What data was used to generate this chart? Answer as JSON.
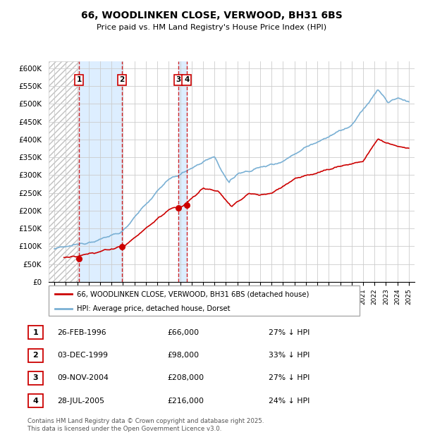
{
  "title": "66, WOODLINKEN CLOSE, VERWOOD, BH31 6BS",
  "subtitle": "Price paid vs. HM Land Registry's House Price Index (HPI)",
  "ylim": [
    0,
    620000
  ],
  "yticks": [
    0,
    50000,
    100000,
    150000,
    200000,
    250000,
    300000,
    350000,
    400000,
    450000,
    500000,
    550000,
    600000
  ],
  "ytick_labels": [
    "£0",
    "£50K",
    "£100K",
    "£150K",
    "£200K",
    "£250K",
    "£300K",
    "£350K",
    "£400K",
    "£450K",
    "£500K",
    "£550K",
    "£600K"
  ],
  "transactions": [
    {
      "date": "26-FEB-1996",
      "year": 1996.15,
      "price": 66000,
      "label": "1",
      "pct": "27%",
      "dir": "↓"
    },
    {
      "date": "03-DEC-1999",
      "year": 1999.92,
      "price": 98000,
      "label": "2",
      "pct": "33%",
      "dir": "↓"
    },
    {
      "date": "09-NOV-2004",
      "year": 2004.85,
      "price": 208000,
      "label": "3",
      "pct": "27%",
      "dir": "↓"
    },
    {
      "date": "28-JUL-2005",
      "year": 2005.57,
      "price": 216000,
      "label": "4",
      "pct": "24%",
      "dir": "↓"
    }
  ],
  "legend_line1": "66, WOODLINKEN CLOSE, VERWOOD, BH31 6BS (detached house)",
  "legend_line2": "HPI: Average price, detached house, Dorset",
  "footer": "Contains HM Land Registry data © Crown copyright and database right 2025.\nThis data is licensed under the Open Government Licence v3.0.",
  "line_color_red": "#cc0000",
  "line_color_blue": "#7ab0d4",
  "shade_color": "#ddeeff",
  "grid_color": "#cccccc",
  "table_border_color": "#cc0000",
  "xlim_start": 1993.5,
  "xlim_end": 2025.5
}
